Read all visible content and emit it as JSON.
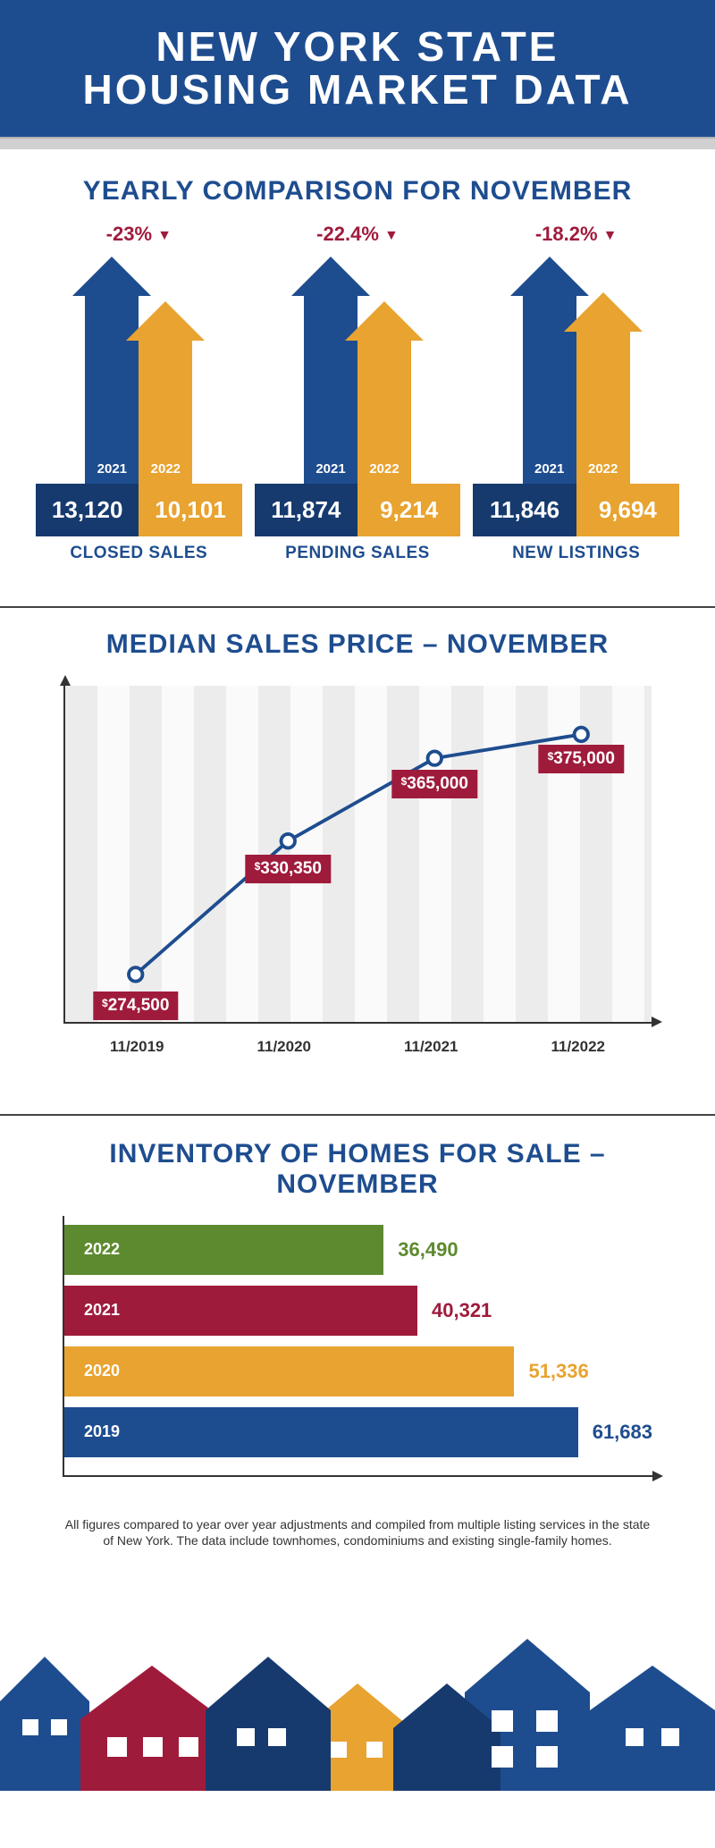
{
  "colors": {
    "navy": "#1e4d8f",
    "navy_dark": "#163a6e",
    "orange": "#e8a330",
    "maroon": "#9f1b3c",
    "green": "#5d8a2f",
    "gray_divider": "#d0d0d0",
    "axis": "#333333",
    "grid_light": "#fafafa",
    "grid_dark": "#ececec"
  },
  "header": {
    "line1": "NEW YORK STATE",
    "line2": "HOUSING MARKET DATA"
  },
  "yearly": {
    "title": "YEARLY COMPARISON FOR NOVEMBER",
    "year_a": "2021",
    "year_b": "2022",
    "blocks": [
      {
        "label": "CLOSED SALES",
        "pct": "-23%",
        "val_a": "13,120",
        "val_b": "10,101",
        "height_a": 210,
        "height_b": 160
      },
      {
        "label": "PENDING SALES",
        "pct": "-22.4%",
        "val_a": "11,874",
        "val_b": "9,214",
        "height_a": 210,
        "height_b": 160
      },
      {
        "label": "NEW LISTINGS",
        "pct": "-18.2%",
        "val_a": "11,846",
        "val_b": "9,694",
        "height_a": 210,
        "height_b": 170
      }
    ]
  },
  "line_chart": {
    "title": "MEDIAN SALES PRICE – NOVEMBER",
    "type": "line",
    "x_labels": [
      "11/2019",
      "11/2020",
      "11/2021",
      "11/2022"
    ],
    "values": [
      274500,
      330350,
      365000,
      375000
    ],
    "value_labels": [
      "274,500",
      "330,350",
      "365,000",
      "375,000"
    ],
    "ylim": [
      260000,
      390000
    ],
    "line_color": "#1e4d8f",
    "line_width": 4,
    "marker_fill": "#ffffff",
    "marker_stroke": "#1e4d8f",
    "marker_radius": 8,
    "label_bg": "#9f1b3c"
  },
  "inventory": {
    "title": "INVENTORY OF HOMES FOR SALE – NOVEMBER",
    "type": "bar",
    "max": 65000,
    "bars": [
      {
        "year": "2022",
        "value": 36490,
        "value_label": "36,490",
        "color": "#5d8a2f"
      },
      {
        "year": "2021",
        "value": 40321,
        "value_label": "40,321",
        "color": "#9f1b3c"
      },
      {
        "year": "2020",
        "value": 51336,
        "value_label": "51,336",
        "color": "#e8a330"
      },
      {
        "year": "2019",
        "value": 61683,
        "value_label": "61,683",
        "color": "#1e4d8f"
      }
    ]
  },
  "footnote": "All figures compared to year over year adjustments and compiled from multiple listing services in the state of New York.  The data include townhomes, condominiums and existing single-family homes."
}
